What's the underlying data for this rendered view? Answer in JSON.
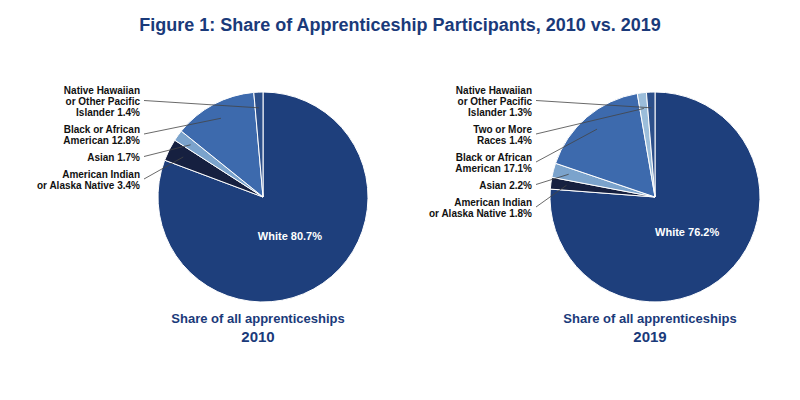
{
  "title": "Figure 1: Share of Apprenticeship Participants, 2010 vs. 2019",
  "chart_data": [
    {
      "type": "pie",
      "subtitle": "Share of all apprenticeships",
      "title": "2010",
      "values": [
        80.7,
        3.4,
        1.7,
        12.8,
        1.4
      ],
      "value_labels": [
        "White 80.7%",
        "American Indian\nor Alaska Native 3.4%",
        "Asian 1.7%",
        "Black or African\nAmerican 12.8%",
        "Native Hawaiian\nor Other Pacific\nIslander 1.4%"
      ],
      "colors": [
        "#1e3f7c",
        "#162040",
        "#7ba3cc",
        "#3d6aad",
        "#2c4f8a"
      ]
    },
    {
      "type": "pie",
      "subtitle": "Share of all apprenticeships",
      "title": "2019",
      "values": [
        76.2,
        1.8,
        2.2,
        17.1,
        1.4,
        1.3
      ],
      "value_labels": [
        "White 76.2%",
        "American Indian\nor Alaska Native 1.8%",
        "Asian 2.2%",
        "Black or African\nAmerican 17.1%",
        "Two or More\nRaces 1.4%",
        "Native Hawaiian\nor Other Pacific\nIslander 1.3%"
      ],
      "colors": [
        "#1e3f7c",
        "#162040",
        "#7ba3cc",
        "#3d6aad",
        "#9bbdda",
        "#2c4f8a"
      ]
    }
  ]
}
